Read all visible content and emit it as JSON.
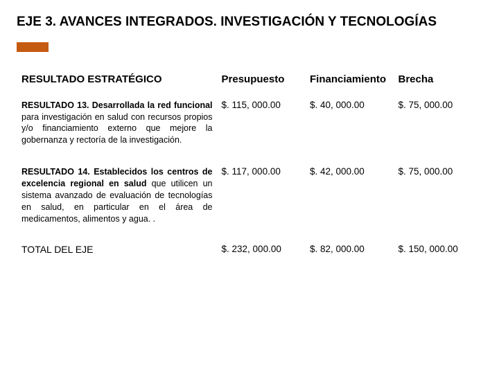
{
  "title": "EJE 3. AVANCES INTEGRADOS. INVESTIGACIÓN Y TECNOLOGÍAS",
  "accent_color": "#c55a11",
  "table": {
    "headers": {
      "result": "RESULTADO ESTRATÉGICO",
      "budget": "Presupuesto",
      "financing": "Financiamiento",
      "gap": "Brecha"
    },
    "rows": [
      {
        "lead": "RESULTADO 13. Desarrollada la red funcional",
        "rest": " para investigación en salud con recursos propios y/o financiamiento externo que mejore la gobernanza y rectoría de la investigación.",
        "budget": "$. 115, 000.00",
        "financing": "$. 40, 000.00",
        "gap": "$. 75, 000.00"
      },
      {
        "lead": "RESULTADO 14. Establecidos los centros de excelencia regional en salud",
        "rest": " que utilicen un sistema avanzado de evaluación de tecnologías en salud, en particular en el área de medicamentos, alimentos y agua. .",
        "budget": "$. 117, 000.00",
        "financing": "$. 42, 000.00",
        "gap": "$. 75, 000.00"
      }
    ],
    "total": {
      "label": "TOTAL DEL EJE",
      "budget": "$. 232, 000.00",
      "financing": "$. 82, 000.00",
      "gap": "$. 150, 000.00"
    }
  }
}
